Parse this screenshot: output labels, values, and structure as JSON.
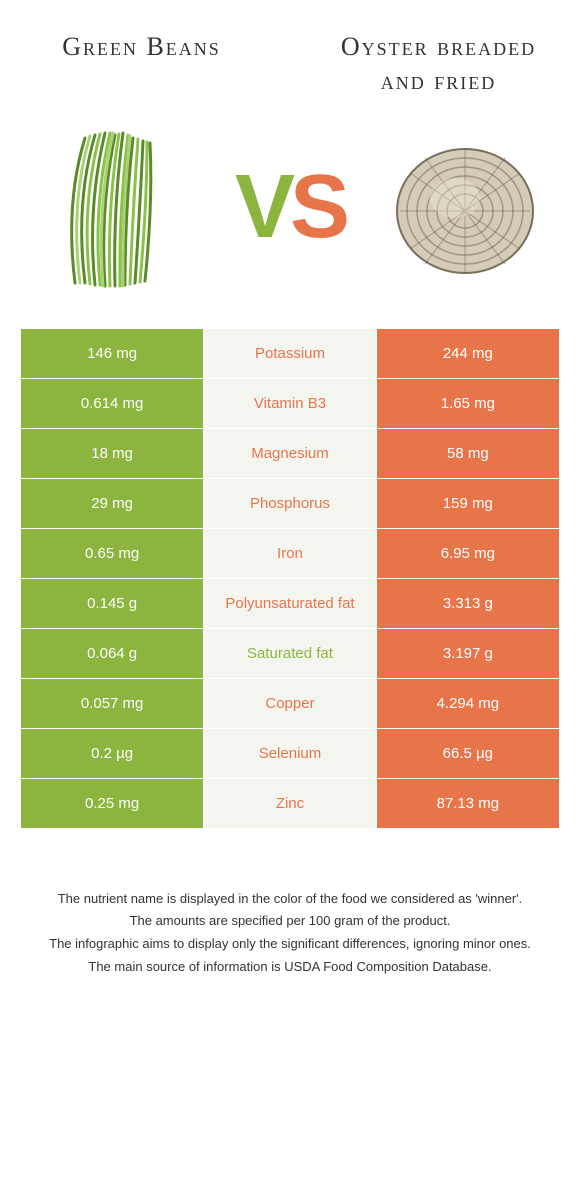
{
  "left_title": "Green Beans",
  "right_title": "Oyster breaded and fried",
  "vs_v": "V",
  "vs_s": "S",
  "colors": {
    "green": "#8bb53f",
    "orange": "#e8754a",
    "mid_bg": "#f5f5f0",
    "background": "#ffffff"
  },
  "rows": [
    {
      "left": "146 mg",
      "label": "Potassium",
      "right": "244 mg",
      "winner": "orange"
    },
    {
      "left": "0.614 mg",
      "label": "Vitamin B3",
      "right": "1.65 mg",
      "winner": "orange"
    },
    {
      "left": "18 mg",
      "label": "Magnesium",
      "right": "58 mg",
      "winner": "orange"
    },
    {
      "left": "29 mg",
      "label": "Phosphorus",
      "right": "159 mg",
      "winner": "orange"
    },
    {
      "left": "0.65 mg",
      "label": "Iron",
      "right": "6.95 mg",
      "winner": "orange"
    },
    {
      "left": "0.145 g",
      "label": "Polyunsaturated fat",
      "right": "3.313 g",
      "winner": "orange"
    },
    {
      "left": "0.064 g",
      "label": "Saturated fat",
      "right": "3.197 g",
      "winner": "green"
    },
    {
      "left": "0.057 mg",
      "label": "Copper",
      "right": "4.294 mg",
      "winner": "orange"
    },
    {
      "left": "0.2 µg",
      "label": "Selenium",
      "right": "66.5 µg",
      "winner": "orange"
    },
    {
      "left": "0.25 mg",
      "label": "Zinc",
      "right": "87.13 mg",
      "winner": "orange"
    }
  ],
  "footnotes": [
    "The nutrient name is displayed in the color of the food we considered as 'winner'.",
    "The amounts are specified per 100 gram of the product.",
    "The infographic aims to display only the significant differences, ignoring minor ones.",
    "The main source of information is USDA Food Composition Database."
  ]
}
